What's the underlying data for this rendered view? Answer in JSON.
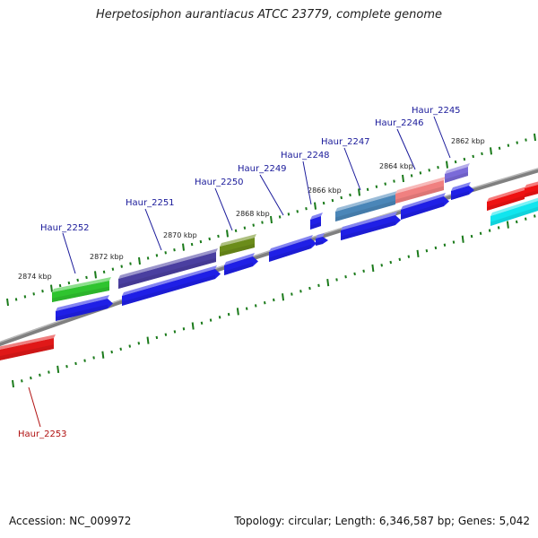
{
  "title": "Herpetosiphon aurantiacus ATCC 23779, complete genome",
  "footer": {
    "accession": "Accession: NC_009972",
    "stats": "Topology: circular; Length: 6,346,587 bp; Genes: 5,042"
  },
  "colors": {
    "backbone": "#808080",
    "cds": "#1f1fe6",
    "tick": "#1a7a1a",
    "label_forward": "#1a1a9a",
    "label_reverse": "#b01010"
  },
  "kbp_ticks": [
    "2874 kbp",
    "2872 kbp",
    "2870 kbp",
    "2868 kbp",
    "2866 kbp",
    "2864 kbp",
    "2862 kbp"
  ],
  "genes": [
    {
      "id": "Haur_2252",
      "color": "#2fc42f"
    },
    {
      "id": "Haur_2251",
      "color": "#4a3fa0"
    },
    {
      "id": "Haur_2250",
      "color": "#6b8c1a"
    },
    {
      "id": "Haur_2249",
      "color": "#1f1fe6"
    },
    {
      "id": "Haur_2248",
      "color": "#1f1fe6"
    },
    {
      "id": "Haur_2247",
      "color": "#4a86b8"
    },
    {
      "id": "Haur_2246",
      "color": "#f08080"
    },
    {
      "id": "Haur_2245",
      "color": "#7a6ad8"
    },
    {
      "id": "Haur_2253",
      "color": "#e01818"
    }
  ]
}
